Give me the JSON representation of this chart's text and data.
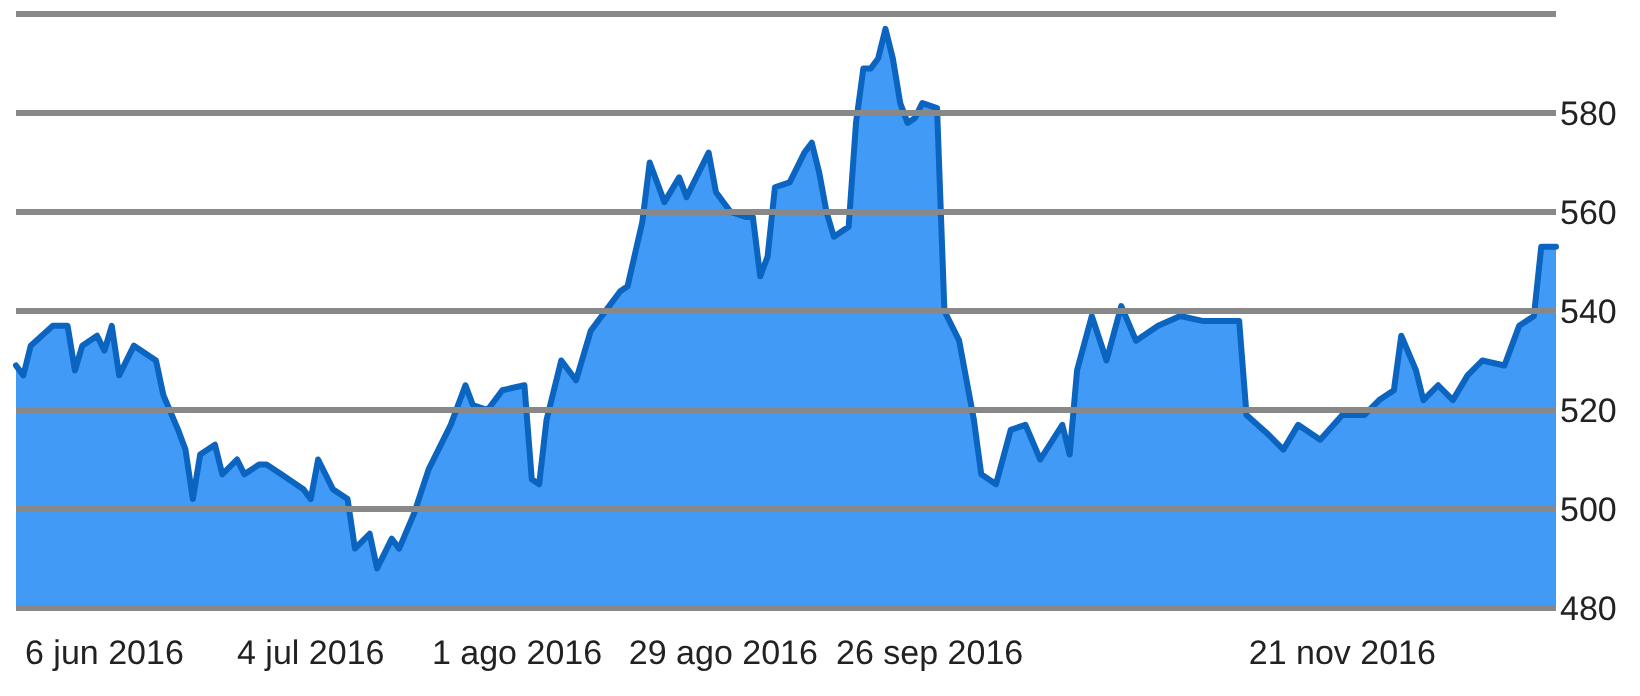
{
  "chart_data": {
    "type": "area",
    "x": [
      "2016-05-25",
      "2016-05-26",
      "2016-05-27",
      "2016-05-30",
      "2016-06-01",
      "2016-06-02",
      "2016-06-03",
      "2016-06-05",
      "2016-06-06",
      "2016-06-07",
      "2016-06-08",
      "2016-06-10",
      "2016-06-13",
      "2016-06-14",
      "2016-06-16",
      "2016-06-17",
      "2016-06-18",
      "2016-06-19",
      "2016-06-21",
      "2016-06-22",
      "2016-06-24",
      "2016-06-25",
      "2016-06-27",
      "2016-06-28",
      "2016-06-30",
      "2016-07-03",
      "2016-07-04",
      "2016-07-05",
      "2016-07-07",
      "2016-07-09",
      "2016-07-10",
      "2016-07-12",
      "2016-07-13",
      "2016-07-15",
      "2016-07-16",
      "2016-07-18",
      "2016-07-20",
      "2016-07-23",
      "2016-07-25",
      "2016-07-26",
      "2016-07-28",
      "2016-07-30",
      "2016-08-02",
      "2016-08-03",
      "2016-08-04",
      "2016-08-05",
      "2016-08-07",
      "2016-08-09",
      "2016-08-11",
      "2016-08-13",
      "2016-08-15",
      "2016-08-16",
      "2016-08-18",
      "2016-08-19",
      "2016-08-20",
      "2016-08-21",
      "2016-08-23",
      "2016-08-24",
      "2016-08-27",
      "2016-08-28",
      "2016-08-30",
      "2016-09-01",
      "2016-09-02",
      "2016-09-03",
      "2016-09-04",
      "2016-09-05",
      "2016-09-07",
      "2016-09-09",
      "2016-09-10",
      "2016-09-11",
      "2016-09-12",
      "2016-09-13",
      "2016-09-15",
      "2016-09-16",
      "2016-09-17",
      "2016-09-18",
      "2016-09-19",
      "2016-09-20",
      "2016-09-21",
      "2016-09-22",
      "2016-09-23",
      "2016-09-24",
      "2016-09-25",
      "2016-09-27",
      "2016-09-28",
      "2016-09-30",
      "2016-10-02",
      "2016-10-03",
      "2016-10-05",
      "2016-10-07",
      "2016-10-09",
      "2016-10-11",
      "2016-10-14",
      "2016-10-15",
      "2016-10-16",
      "2016-10-18",
      "2016-10-20",
      "2016-10-22",
      "2016-10-24",
      "2016-10-27",
      "2016-10-30",
      "2016-11-02",
      "2016-11-07",
      "2016-11-08",
      "2016-11-11",
      "2016-11-13",
      "2016-11-15",
      "2016-11-18",
      "2016-11-21",
      "2016-11-24",
      "2016-11-26",
      "2016-11-28",
      "2016-11-29",
      "2016-12-01",
      "2016-12-02",
      "2016-12-04",
      "2016-12-06",
      "2016-12-08",
      "2016-12-10",
      "2016-12-13",
      "2016-12-15",
      "2016-12-17",
      "2016-12-18",
      "2016-12-19",
      "2016-12-20"
    ],
    "series": [
      {
        "color": "#0a64c0",
        "values": [
          529,
          527,
          533,
          537,
          537,
          528,
          533,
          535,
          532,
          537,
          527,
          533,
          530,
          523,
          516,
          512,
          502,
          511,
          513,
          507,
          510,
          507,
          509,
          509,
          507,
          504,
          502,
          510,
          504,
          502,
          492,
          495,
          488,
          494,
          492,
          499,
          508,
          517,
          525,
          521,
          520,
          524,
          525,
          506,
          505,
          518,
          530,
          526,
          536,
          540,
          544,
          545,
          558,
          570,
          566,
          562,
          567,
          563,
          572,
          564,
          560,
          559,
          559,
          547,
          551,
          565,
          566,
          572,
          574,
          568,
          560,
          555,
          557,
          578,
          589,
          589,
          591,
          597,
          591,
          582,
          578,
          579,
          582,
          581,
          540,
          534,
          518,
          507,
          505,
          516,
          517,
          510,
          517,
          511,
          528,
          539,
          530,
          541,
          534,
          537,
          539,
          538,
          538,
          519,
          515,
          512,
          517,
          514,
          519,
          519,
          522,
          524,
          535,
          528,
          522,
          525,
          522,
          527,
          530,
          529,
          537,
          539,
          553,
          553,
          553
        ]
      }
    ],
    "xlim": [
      "2016-05-25",
      "2016-12-20"
    ],
    "xticks": [
      {
        "value": "2016-06-06",
        "label": "6 jun 2016"
      },
      {
        "value": "2016-07-04",
        "label": "4 jul 2016"
      },
      {
        "value": "2016-08-01",
        "label": "1 ago 2016"
      },
      {
        "value": "2016-08-29",
        "label": "29 ago 2016"
      },
      {
        "value": "2016-09-26",
        "label": "26 sep 2016"
      },
      {
        "value": "2016-11-21",
        "label": "21 nov 2016"
      }
    ],
    "ylim": [
      480,
      600
    ],
    "yticks": [
      480,
      500,
      520,
      540,
      560,
      580,
      {
        "value": 600,
        "label": null
      }
    ],
    "grid": "y"
  }
}
